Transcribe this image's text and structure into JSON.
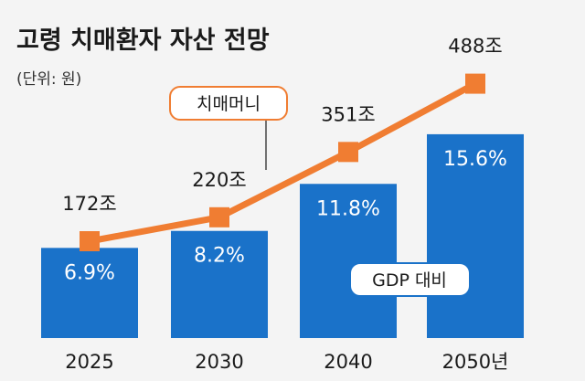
{
  "chart_data": {
    "type": "bar",
    "title": "고령 치매환자 자산 전망",
    "unit": "(단위: 원)",
    "categories": [
      "2025",
      "2030",
      "2040",
      "2050년"
    ],
    "series": [
      {
        "name": "GDP 대비",
        "type": "bar",
        "values": [
          6.9,
          8.2,
          11.8,
          15.6
        ],
        "labels": [
          "6.9%",
          "8.2%",
          "11.8%",
          "15.6%"
        ],
        "color": "#1a72c9"
      },
      {
        "name": "치매머니",
        "type": "line",
        "values": [
          172,
          220,
          351,
          488
        ],
        "labels": [
          "172조",
          "220조",
          "351조",
          "488조"
        ],
        "color": "#f07d32"
      }
    ]
  }
}
